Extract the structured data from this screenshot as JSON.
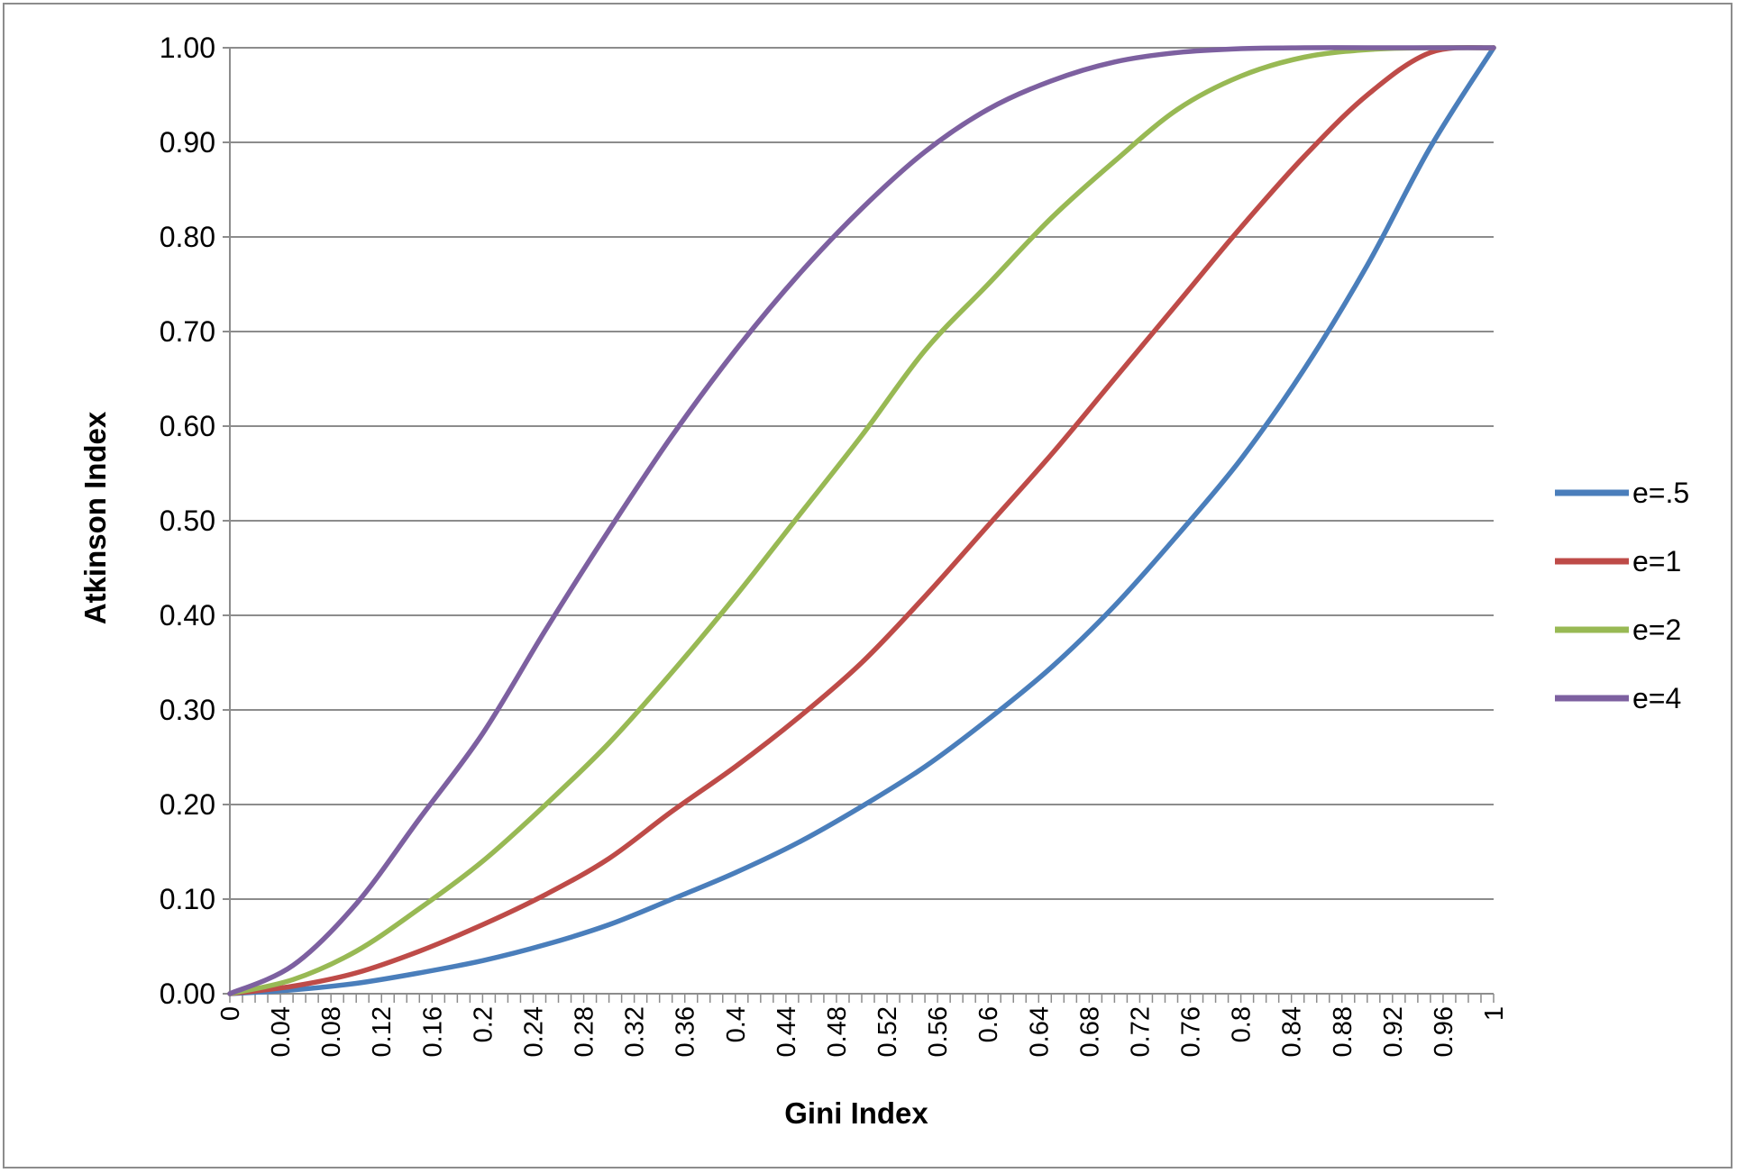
{
  "chart_data": {
    "type": "line",
    "xlabel": "Gini Index",
    "ylabel": "Atkinson Index",
    "xlim": [
      0,
      1
    ],
    "ylim": [
      0,
      1
    ],
    "y_ticks": [
      "0.00",
      "0.10",
      "0.20",
      "0.30",
      "0.40",
      "0.50",
      "0.60",
      "0.70",
      "0.80",
      "0.90",
      "1.00"
    ],
    "x_ticks": [
      "0",
      "0.04",
      "0.08",
      "0.12",
      "0.16",
      "0.2",
      "0.24",
      "0.28",
      "0.32",
      "0.36",
      "0.4",
      "0.44",
      "0.48",
      "0.52",
      "0.56",
      "0.6",
      "0.64",
      "0.68",
      "0.72",
      "0.76",
      "0.8",
      "0.84",
      "0.88",
      "0.92",
      "0.96",
      "1"
    ],
    "grid": "horizontal",
    "legend_position": "right",
    "x": [
      0,
      0.05,
      0.1,
      0.15,
      0.2,
      0.25,
      0.3,
      0.35,
      0.4,
      0.45,
      0.5,
      0.55,
      0.6,
      0.65,
      0.7,
      0.75,
      0.8,
      0.85,
      0.9,
      0.95,
      1.0
    ],
    "series": [
      {
        "name": "e=.5",
        "color": "#4a7ebb",
        "values": [
          0,
          0.004,
          0.011,
          0.022,
          0.035,
          0.052,
          0.073,
          0.1,
          0.128,
          0.16,
          0.198,
          0.24,
          0.29,
          0.345,
          0.41,
          0.485,
          0.565,
          0.66,
          0.77,
          0.895,
          1.0
        ]
      },
      {
        "name": "e=1",
        "color": "#be4b48",
        "values": [
          0,
          0.008,
          0.022,
          0.045,
          0.073,
          0.105,
          0.143,
          0.193,
          0.24,
          0.292,
          0.35,
          0.42,
          0.495,
          0.57,
          0.65,
          0.73,
          0.81,
          0.885,
          0.95,
          0.995,
          1.0
        ]
      },
      {
        "name": "e=2",
        "color": "#98b954",
        "values": [
          0,
          0.015,
          0.045,
          0.09,
          0.14,
          0.2,
          0.265,
          0.34,
          0.42,
          0.505,
          0.59,
          0.68,
          0.75,
          0.82,
          0.88,
          0.935,
          0.97,
          0.99,
          0.998,
          1.0,
          1.0
        ]
      },
      {
        "name": "e=4",
        "color": "#7d60a0",
        "values": [
          0,
          0.03,
          0.095,
          0.185,
          0.275,
          0.385,
          0.49,
          0.59,
          0.68,
          0.76,
          0.83,
          0.89,
          0.935,
          0.965,
          0.985,
          0.995,
          0.999,
          1.0,
          1.0,
          1.0,
          1.0
        ]
      }
    ]
  }
}
